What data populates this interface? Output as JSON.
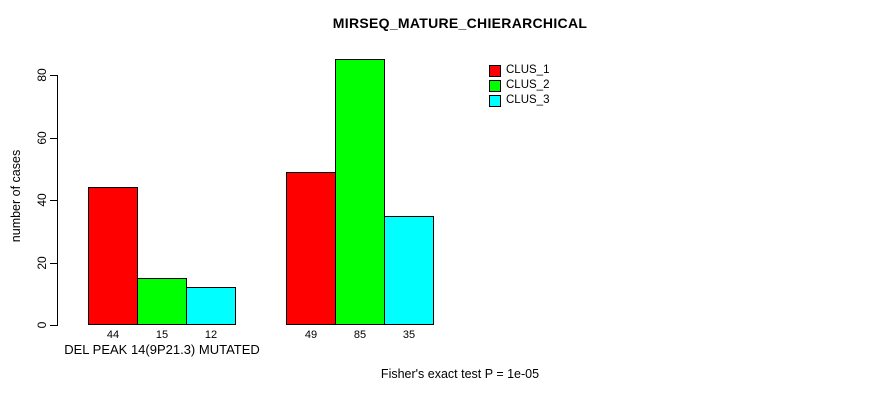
{
  "chart_data": {
    "type": "bar",
    "title": "MIRSEQ_MATURE_CHIERARCHICAL",
    "ylabel": "number of cases",
    "xlabel": "",
    "ylim": [
      0,
      80
    ],
    "yticks": [
      0,
      20,
      40,
      60,
      80
    ],
    "grid": false,
    "legend_position": "top-right",
    "categories": [
      "DEL PEAK 14(9P21.3) MUTATED",
      ""
    ],
    "series": [
      {
        "name": "CLUS_1",
        "color": "#ff0000",
        "values": [
          44,
          49
        ]
      },
      {
        "name": "CLUS_2",
        "color": "#00ff00",
        "values": [
          15,
          85
        ]
      },
      {
        "name": "CLUS_3",
        "color": "#00ffff",
        "values": [
          12,
          35
        ]
      }
    ],
    "annotation": "Fisher's exact test P = 1e-05"
  }
}
